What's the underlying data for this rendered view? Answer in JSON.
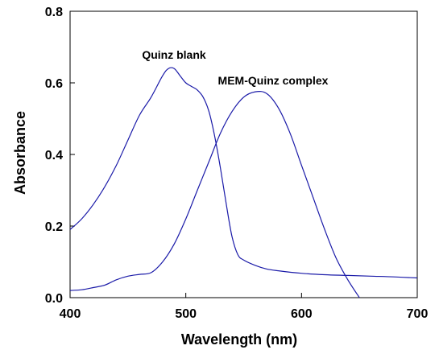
{
  "chart_data": {
    "type": "line",
    "title": "",
    "xlabel": "Wavelength (nm)",
    "ylabel": "Absorbance",
    "xlim": [
      400,
      700
    ],
    "ylim": [
      0.0,
      0.8
    ],
    "xticks": [
      400,
      500,
      600,
      700
    ],
    "yticks": [
      0.0,
      0.2,
      0.4,
      0.6,
      0.8
    ],
    "xtick_labels": [
      "400",
      "500",
      "600",
      "700"
    ],
    "ytick_labels": [
      "0.0",
      "0.2",
      "0.4",
      "0.6",
      "0.8"
    ],
    "grid": false,
    "legend": "none",
    "line_color": "#1a1aa8",
    "annotations": [
      {
        "text": "Quinz blank",
        "series": "Quinz blank"
      },
      {
        "text": "MEM-Quinz complex",
        "series": "MEM-Quinz complex"
      }
    ],
    "series": [
      {
        "name": "Quinz blank",
        "x": [
          400,
          410,
          420,
          430,
          440,
          450,
          460,
          470,
          480,
          485,
          490,
          495,
          500,
          505,
          510,
          515,
          520,
          525,
          530,
          535,
          540,
          545,
          550,
          560,
          570,
          580,
          600,
          620,
          640,
          660,
          680,
          700
        ],
        "y": [
          0.19,
          0.22,
          0.26,
          0.31,
          0.37,
          0.44,
          0.51,
          0.56,
          0.62,
          0.64,
          0.64,
          0.62,
          0.6,
          0.59,
          0.58,
          0.56,
          0.52,
          0.45,
          0.36,
          0.26,
          0.17,
          0.12,
          0.105,
          0.09,
          0.08,
          0.075,
          0.068,
          0.064,
          0.062,
          0.06,
          0.058,
          0.055
        ]
      },
      {
        "name": "MEM-Quinz complex",
        "x": [
          400,
          410,
          420,
          430,
          440,
          450,
          460,
          470,
          480,
          490,
          500,
          510,
          520,
          530,
          540,
          550,
          560,
          570,
          580,
          590,
          600,
          610,
          620,
          630,
          640,
          650
        ],
        "y": [
          0.02,
          0.022,
          0.028,
          0.035,
          0.05,
          0.06,
          0.065,
          0.07,
          0.1,
          0.15,
          0.22,
          0.3,
          0.38,
          0.46,
          0.52,
          0.56,
          0.575,
          0.57,
          0.53,
          0.46,
          0.37,
          0.28,
          0.19,
          0.11,
          0.05,
          0.0
        ]
      }
    ]
  }
}
